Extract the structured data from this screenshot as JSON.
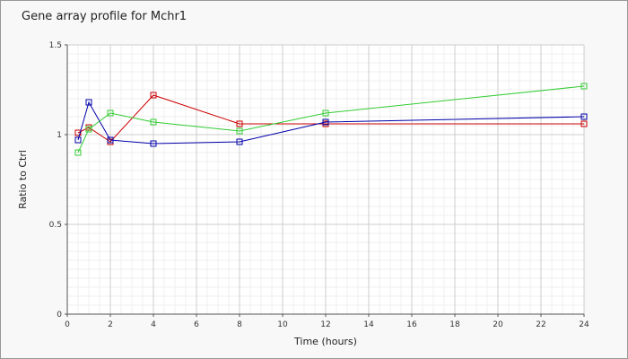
{
  "chart_data": {
    "type": "line",
    "title": "Gene array profile for Mchr1",
    "xlabel": "Time (hours)",
    "ylabel": "Ratio to Ctrl",
    "xlim": [
      0,
      24
    ],
    "ylim": [
      0,
      1.5
    ],
    "x_ticks": [
      "0",
      "2",
      "4",
      "6",
      "8",
      "10",
      "12",
      "14",
      "16",
      "18",
      "20",
      "22",
      "24"
    ],
    "y_ticks": [
      "0",
      "0.5",
      "1",
      "1.5"
    ],
    "grid": true,
    "series": [
      {
        "color": "#cc0000",
        "points": [
          [
            0.5,
            1.01
          ],
          [
            1,
            1.04
          ],
          [
            2,
            0.96
          ],
          [
            4,
            1.22
          ],
          [
            8,
            1.06
          ],
          [
            12,
            1.06
          ],
          [
            24,
            1.06
          ]
        ]
      },
      {
        "color": "#0000aa",
        "points": [
          [
            0.5,
            0.97
          ],
          [
            1,
            1.18
          ],
          [
            2,
            0.97
          ],
          [
            4,
            0.95
          ],
          [
            8,
            0.96
          ],
          [
            12,
            1.07
          ],
          [
            24,
            1.1
          ]
        ]
      },
      {
        "color": "#33cc33",
        "points": [
          [
            0.5,
            0.9
          ],
          [
            1,
            1.03
          ],
          [
            2,
            1.12
          ],
          [
            4,
            1.07
          ],
          [
            8,
            1.02
          ],
          [
            12,
            1.12
          ],
          [
            24,
            1.27
          ]
        ]
      }
    ]
  }
}
